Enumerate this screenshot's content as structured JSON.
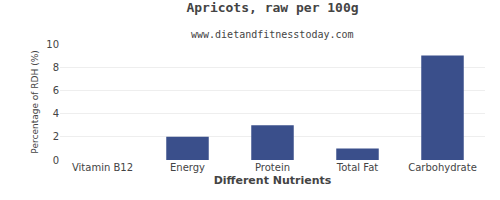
{
  "chart_data": {
    "type": "bar",
    "title": "Apricots, raw per 100g",
    "subtitle": "www.dietandfitnesstoday.com",
    "xlabel": "Different Nutrients",
    "ylabel": "Percentage of RDH (%)",
    "categories": [
      "Vitamin B12",
      "Energy",
      "Protein",
      "Total Fat",
      "Carbohydrate"
    ],
    "values": [
      0,
      2,
      3,
      1,
      9
    ],
    "color": "#3a4f8b",
    "ylim": [
      0,
      10
    ],
    "yticks": [
      0,
      2,
      4,
      6,
      8,
      10
    ],
    "grid": true
  }
}
